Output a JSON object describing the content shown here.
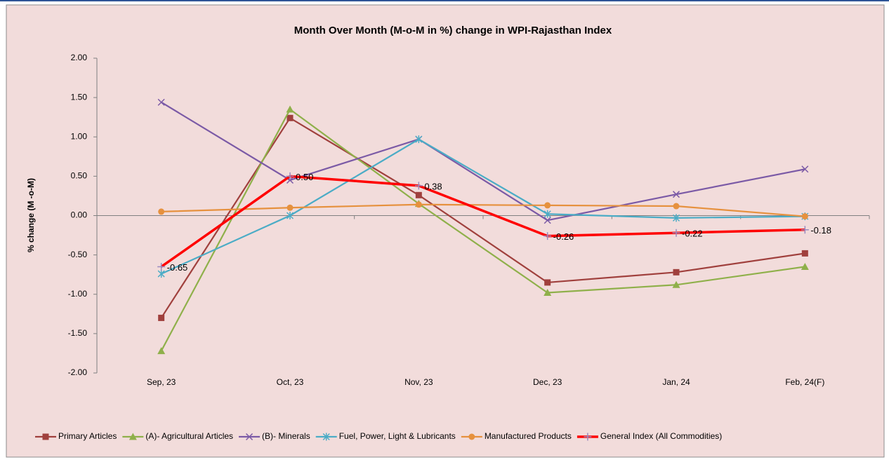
{
  "chart_data": {
    "type": "line",
    "title": "Month Over Month (M-o-M in %) change in WPI-Rajasthan Index",
    "y_label": "% change (M  -o-M)",
    "categories": [
      "Sep, 23",
      "Oct, 23",
      "Nov, 23",
      "Dec, 23",
      "Jan, 24",
      "Feb, 24(F)"
    ],
    "ylim": [
      -2,
      2
    ],
    "yticks": [
      {
        "value": -2,
        "label": "-2.00"
      },
      {
        "value": -1.5,
        "label": "-1.50"
      },
      {
        "value": -1,
        "label": "-1.00"
      },
      {
        "value": -0.5,
        "label": "-0.50"
      },
      {
        "value": 0,
        "label": "0.00"
      },
      {
        "value": 0.5,
        "label": "0.50"
      },
      {
        "value": 1,
        "label": "1.00"
      },
      {
        "value": 1.5,
        "label": "1.50"
      },
      {
        "value": 2,
        "label": "2.00"
      }
    ],
    "grid": false,
    "legend": "bottom",
    "series": [
      {
        "name": "Primary Articles",
        "color": "#a0403d",
        "marker": "square",
        "values": [
          -1.3,
          1.24,
          0.26,
          -0.85,
          -0.72,
          -0.48
        ]
      },
      {
        "name": "(A)- Agricultural Articles",
        "color": "#8fb04a",
        "marker": "triangle",
        "values": [
          -1.72,
          1.35,
          0.15,
          -0.98,
          -0.88,
          -0.65
        ]
      },
      {
        "name": "(B)- Minerals",
        "color": "#7b5aa6",
        "marker": "x",
        "values": [
          1.44,
          0.45,
          0.97,
          -0.06,
          0.27,
          0.59
        ]
      },
      {
        "name": "Fuel, Power, Light & Lubricants",
        "color": "#4bacc6",
        "marker": "star",
        "values": [
          -0.74,
          0.0,
          0.97,
          0.02,
          -0.03,
          -0.01
        ]
      },
      {
        "name": "Manufactured Products",
        "color": "#e6913e",
        "marker": "circle",
        "values": [
          0.05,
          0.1,
          0.14,
          0.13,
          0.12,
          -0.01
        ]
      },
      {
        "name": "General Index (All Commodities)",
        "color": "#ff0000",
        "marker": "plus",
        "values": [
          -0.65,
          0.5,
          0.38,
          -0.26,
          -0.22,
          -0.18
        ],
        "value_labels": [
          "-0.65",
          "0.50",
          "0.38",
          "-0.26",
          "-0.22",
          "-0.18"
        ]
      }
    ]
  }
}
